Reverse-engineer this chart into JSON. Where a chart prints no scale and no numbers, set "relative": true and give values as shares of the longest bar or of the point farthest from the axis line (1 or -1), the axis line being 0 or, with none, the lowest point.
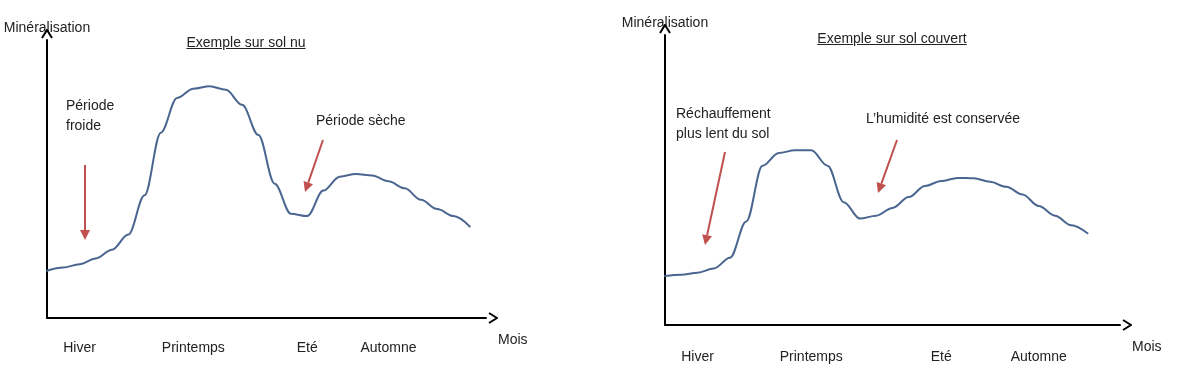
{
  "chart_data": [
    {
      "type": "line",
      "title": "Exemple sur sol nu",
      "xlabel": "Mois",
      "ylabel": "Minéralisation",
      "relative": true,
      "color": "#4a6690",
      "marker": "none",
      "categories": [
        null,
        null,
        "Hiver",
        null,
        null,
        null,
        null,
        null,
        null,
        "Printemps",
        null,
        null,
        null,
        null,
        null,
        null,
        "Eté",
        null,
        null,
        null,
        null,
        "Automne",
        null,
        null,
        null,
        null,
        null,
        null
      ],
      "values": [
        0.204,
        0.218,
        0.232,
        0.257,
        0.295,
        0.36,
        0.53,
        0.8,
        0.95,
        0.99,
        1,
        0.985,
        0.92,
        0.79,
        0.58,
        0.45,
        0.44,
        0.55,
        0.61,
        0.622,
        0.615,
        0.59,
        0.56,
        0.51,
        0.47,
        0.44,
        0.395,
        null
      ],
      "annotations": [
        "Période froide",
        "Période sèche"
      ]
    },
    {
      "type": "line",
      "title": "Exemple sur sol couvert",
      "xlabel": "Mois",
      "ylabel": "Minéralisation",
      "relative": true,
      "color": "#4a6690",
      "marker": "none",
      "categories": [
        null,
        null,
        "Hiver",
        null,
        null,
        null,
        null,
        null,
        null,
        "Printemps",
        null,
        null,
        null,
        null,
        null,
        null,
        null,
        "Eté",
        null,
        null,
        null,
        null,
        null,
        "Automne",
        null,
        null,
        null,
        null,
        null
      ],
      "values": [
        0.281,
        0.288,
        0.299,
        0.323,
        0.385,
        0.593,
        0.912,
        0.985,
        1,
        1,
        0.912,
        0.703,
        0.609,
        0.626,
        0.67,
        0.732,
        0.796,
        0.824,
        0.842,
        0.84,
        0.82,
        0.791,
        0.747,
        0.681,
        0.626,
        0.571,
        0.525,
        null,
        null
      ],
      "annotations": [
        "Réchauffement plus lent du sol",
        "L’humidité est conservée"
      ]
    }
  ]
}
